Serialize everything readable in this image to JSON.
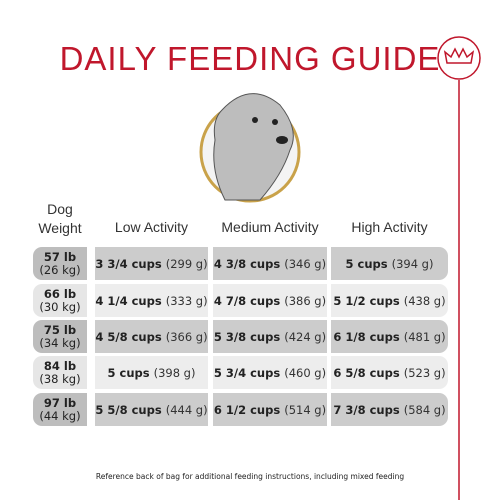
{
  "header": {
    "title": "DAILY FEEDING GUIDE"
  },
  "table": {
    "columns": {
      "weight": [
        "Dog",
        "Weight"
      ],
      "low": "Low Activity",
      "medium": "Medium Activity",
      "high": "High Activity"
    },
    "rows": [
      {
        "lb": "57 lb",
        "kg": "(26 kg)",
        "cells": [
          {
            "cups": "3 3/4 cups",
            "grams": "(299 g)"
          },
          {
            "cups": "4 3/8 cups",
            "grams": "(346 g)"
          },
          {
            "cups": "5 cups",
            "grams": "(394 g)"
          }
        ]
      },
      {
        "lb": "66 lb",
        "kg": "(30 kg)",
        "cells": [
          {
            "cups": "4 1/4 cups",
            "grams": "(333 g)"
          },
          {
            "cups": "4 7/8 cups",
            "grams": "(386 g)"
          },
          {
            "cups": "5 1/2 cups",
            "grams": "(438 g)"
          }
        ]
      },
      {
        "lb": "75 lb",
        "kg": "(34 kg)",
        "cells": [
          {
            "cups": "4 5/8 cups",
            "grams": "(366 g)"
          },
          {
            "cups": "5 3/8 cups",
            "grams": "(424 g)"
          },
          {
            "cups": "6 1/8 cups",
            "grams": "(481 g)"
          }
        ]
      },
      {
        "lb": "84 lb",
        "kg": "(38 kg)",
        "cells": [
          {
            "cups": "5 cups",
            "grams": "(398 g)"
          },
          {
            "cups": "5 3/4 cups",
            "grams": "(460 g)"
          },
          {
            "cups": "6 5/8 cups",
            "grams": "(523 g)"
          }
        ]
      },
      {
        "lb": "97 lb",
        "kg": "(44 kg)",
        "cells": [
          {
            "cups": "5 5/8 cups",
            "grams": "(444 g)"
          },
          {
            "cups": "6 1/2 cups",
            "grams": "(514 g)"
          },
          {
            "cups": "7 3/8 cups",
            "grams": "(584 g)"
          }
        ]
      }
    ]
  },
  "footer": {
    "note": "Reference back of bag for additional feeding instructions, including mixed feeding"
  }
}
